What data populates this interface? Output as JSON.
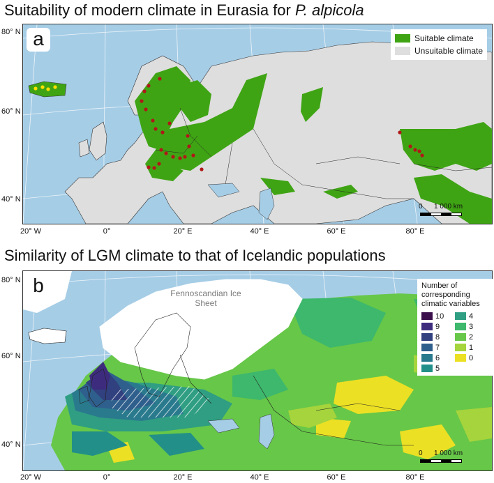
{
  "panel_a": {
    "title_prefix": "Suitability of modern climate in Eurasia for ",
    "title_species": "P. alpicola",
    "letter": "a",
    "legend": [
      {
        "label": "Suitable climate",
        "color": "#3fa414"
      },
      {
        "label": "Unsuitable climate",
        "color": "#dedede"
      }
    ],
    "scale_start": "0",
    "scale_end": "1 000 km",
    "lat_labels": [
      "80° N",
      "60° N",
      "40° N"
    ],
    "occurrence_color": "#b01818",
    "iceland_point_color": "#ffe000"
  },
  "panel_b": {
    "title": "Similarity of LGM climate to that of Icelandic populations",
    "letter": "b",
    "legend_title": "Number of corresponding climatic variables",
    "legend": [
      {
        "label": "10",
        "color": "#3a0f4c"
      },
      {
        "label": "4",
        "color": "#2f9e82"
      },
      {
        "label": "9",
        "color": "#3d2c7e"
      },
      {
        "label": "3",
        "color": "#3db86c"
      },
      {
        "label": "8",
        "color": "#31407e"
      },
      {
        "label": "2",
        "color": "#67c748"
      },
      {
        "label": "7",
        "color": "#2f5f8c"
      },
      {
        "label": "1",
        "color": "#a5d43c"
      },
      {
        "label": "6",
        "color": "#2a7a8e"
      },
      {
        "label": "0",
        "color": "#ece024"
      },
      {
        "label": "5",
        "color": "#229088"
      }
    ],
    "ice_label": "Fennoscandian Ice Sheet",
    "scale_start": "0",
    "scale_end": "1 000 km",
    "lat_labels": [
      "80° N",
      "60° N",
      "40° N"
    ]
  },
  "lon_labels_a": [
    "20° W",
    "0°",
    "20° E",
    "40° E",
    "60° E",
    "80° E"
  ],
  "lon_labels_b": [
    "20° W",
    "0°",
    "20° E",
    "40° E",
    "60° E",
    "80° E"
  ],
  "colors": {
    "sea": "#a6cde6",
    "land_unsuitable": "#dedede",
    "suitable": "#3fa414",
    "ice": "#ffffff",
    "border": "#222222"
  }
}
